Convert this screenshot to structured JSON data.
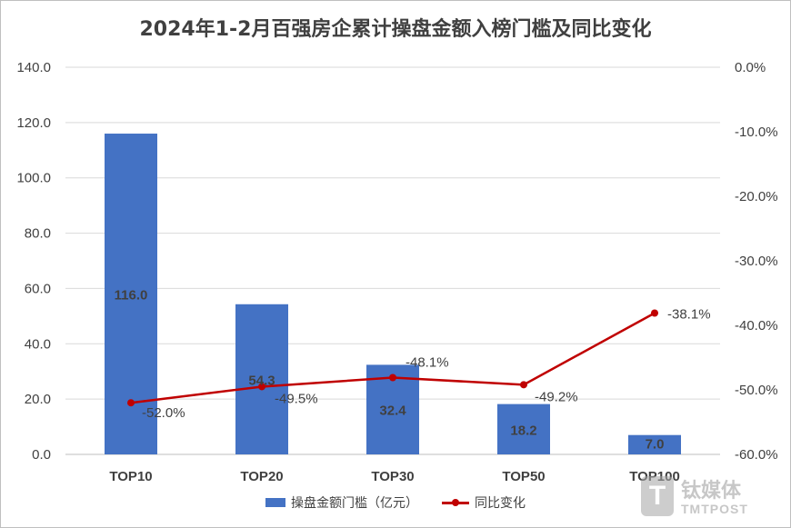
{
  "chart_data": {
    "type": "bar+line",
    "title": "2024年1-2月百强房企累计操盘金额入榜门槛及同比变化",
    "categories": [
      "TOP10",
      "TOP20",
      "TOP30",
      "TOP50",
      "TOP100"
    ],
    "series": [
      {
        "name": "操盘金额门槛（亿元）",
        "type": "bar",
        "axis": "left",
        "color": "#4472c4",
        "values": [
          116.0,
          54.3,
          32.4,
          18.2,
          7.0
        ],
        "labels": [
          "116.0",
          "54.3",
          "32.4",
          "18.2",
          "7.0"
        ]
      },
      {
        "name": "同比变化",
        "type": "line",
        "axis": "right",
        "color": "#c00000",
        "values": [
          -52.0,
          -49.5,
          -48.1,
          -49.2,
          -38.1
        ],
        "labels": [
          "-52.0%",
          "-49.5%",
          "-48.1%",
          "-49.2%",
          "-38.1%"
        ]
      }
    ],
    "y_left": {
      "range": [
        0,
        140
      ],
      "ticks": [
        0,
        20,
        40,
        60,
        80,
        100,
        120,
        140
      ],
      "tick_labels": [
        "0.0",
        "20.0",
        "40.0",
        "60.0",
        "80.0",
        "100.0",
        "120.0",
        "140.0"
      ]
    },
    "y_right": {
      "range": [
        -60,
        0
      ],
      "ticks": [
        -60,
        -50,
        -40,
        -30,
        -20,
        -10,
        0
      ],
      "tick_labels": [
        "-60.0%",
        "-50.0%",
        "-40.0%",
        "-30.0%",
        "-20.0%",
        "-10.0%",
        "0.0%"
      ]
    },
    "grid": true,
    "legend_position": "bottom"
  },
  "watermark": {
    "logo_char": "T",
    "name_cn": "钛媒体",
    "name_en": "TMTPOST"
  }
}
